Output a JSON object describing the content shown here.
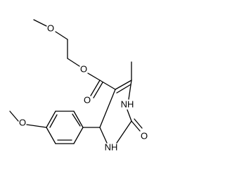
{
  "atoms": [
    {
      "label": "O"
    },
    {
      "label": "O"
    },
    {
      "label": "O"
    },
    {
      "label": "NH"
    },
    {
      "label": "O"
    },
    {
      "label": "NH"
    },
    {
      "label": "O"
    }
  ]
}
